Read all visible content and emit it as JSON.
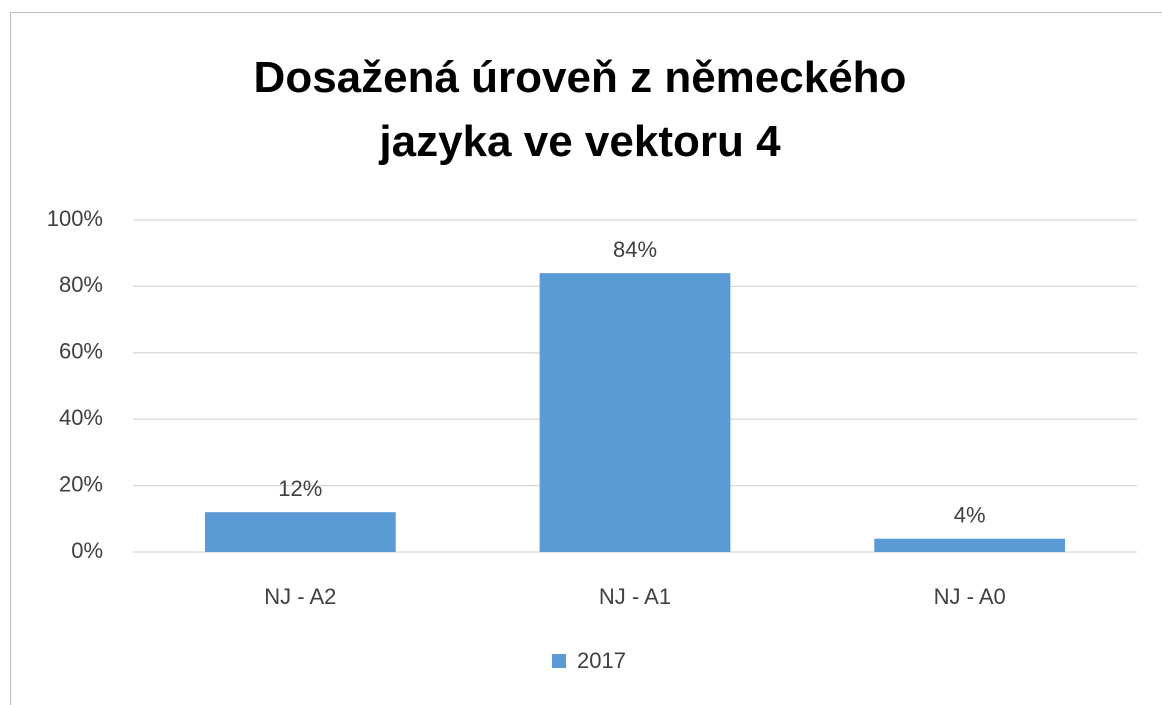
{
  "chart_data": {
    "type": "bar",
    "title": "Dosažená úroveň z německého jazyka ve vektoru 4",
    "categories": [
      "NJ - A2",
      "NJ - A1",
      "NJ - A0"
    ],
    "series": [
      {
        "name": "2017",
        "color": "#5b9bd5",
        "values": [
          12,
          84,
          4
        ],
        "value_labels": [
          "12%",
          "84%",
          "4%"
        ]
      }
    ],
    "ylim": [
      0,
      100
    ],
    "yticks": [
      {
        "value": 0,
        "label": "0%"
      },
      {
        "value": 20,
        "label": "20%"
      },
      {
        "value": 40,
        "label": "40%"
      },
      {
        "value": 60,
        "label": "60%"
      },
      {
        "value": 80,
        "label": "80%"
      },
      {
        "value": 100,
        "label": "100%"
      }
    ],
    "grid": true,
    "legend": "bottom"
  }
}
